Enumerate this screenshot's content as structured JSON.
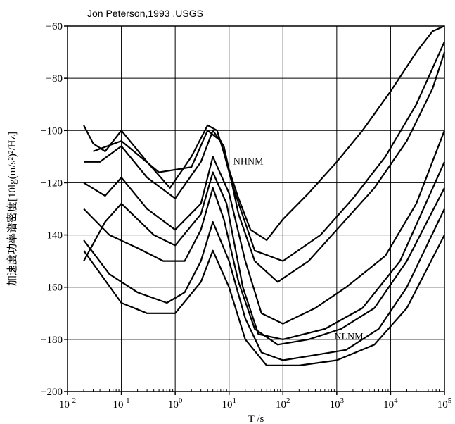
{
  "chart_data": {
    "type": "line",
    "title": "",
    "credit": "Jon Peterson,1993 ,USGS",
    "xlabel": "T /s",
    "ylabel": "加速度功率谱密度[10lg(m/s²)²/Hz]",
    "xscale": "log",
    "xlim": [
      0.01,
      100000
    ],
    "ylim": [
      -200,
      -60
    ],
    "x_tick_labels": [
      {
        "base": "10",
        "exp": "-2"
      },
      {
        "base": "10",
        "exp": "-1"
      },
      {
        "base": "10",
        "exp": "0"
      },
      {
        "base": "10",
        "exp": "1"
      },
      {
        "base": "10",
        "exp": "2"
      },
      {
        "base": "10",
        "exp": "3"
      },
      {
        "base": "10",
        "exp": "4"
      },
      {
        "base": "10",
        "exp": "5"
      }
    ],
    "x_ticks": [
      0.01,
      0.1,
      1,
      10,
      100,
      1000,
      10000,
      100000
    ],
    "y_ticks": [
      -60,
      -80,
      -100,
      -120,
      -140,
      -160,
      -180,
      -200
    ],
    "y_tick_labels": [
      "−60",
      "−80",
      "−100",
      "−120",
      "−140",
      "−160",
      "−180",
      "−200"
    ],
    "grid": true,
    "annotations": [
      {
        "text": "NHNM",
        "x": 12,
        "y": -113
      },
      {
        "text": "NLNM",
        "x": 900,
        "y": -180
      }
    ],
    "series": [
      {
        "points": [
          [
            0.02,
            -98
          ],
          [
            0.03,
            -105
          ],
          [
            0.05,
            -108
          ],
          [
            0.1,
            -100
          ],
          [
            0.3,
            -112
          ],
          [
            0.8,
            -122
          ],
          [
            2,
            -110
          ],
          [
            4,
            -98
          ],
          [
            6,
            -100
          ],
          [
            10,
            -115
          ],
          [
            15,
            -126
          ],
          [
            25,
            -138
          ],
          [
            50,
            -142
          ],
          [
            100,
            -134
          ],
          [
            300,
            -124
          ],
          [
            1000,
            -112
          ],
          [
            3000,
            -100
          ],
          [
            10000,
            -85
          ],
          [
            30000,
            -70
          ],
          [
            60000,
            -62
          ],
          [
            100000,
            -60
          ]
        ]
      },
      {
        "points": [
          [
            0.02,
            -112
          ],
          [
            0.04,
            -112
          ],
          [
            0.1,
            -106
          ],
          [
            0.3,
            -118
          ],
          [
            1,
            -126
          ],
          [
            3,
            -112
          ],
          [
            5,
            -100
          ],
          [
            8,
            -106
          ],
          [
            15,
            -132
          ],
          [
            30,
            -150
          ],
          [
            80,
            -158
          ],
          [
            300,
            -150
          ],
          [
            1000,
            -138
          ],
          [
            5000,
            -122
          ],
          [
            20000,
            -104
          ],
          [
            60000,
            -84
          ],
          [
            100000,
            -70
          ]
        ]
      },
      {
        "points": [
          [
            0.02,
            -120
          ],
          [
            0.05,
            -125
          ],
          [
            0.1,
            -118
          ],
          [
            0.3,
            -130
          ],
          [
            1,
            -138
          ],
          [
            3,
            -128
          ],
          [
            5,
            -110
          ],
          [
            10,
            -124
          ],
          [
            20,
            -150
          ],
          [
            40,
            -170
          ],
          [
            100,
            -174
          ],
          [
            400,
            -168
          ],
          [
            1500,
            -160
          ],
          [
            8000,
            -148
          ],
          [
            30000,
            -128
          ],
          [
            100000,
            -100
          ]
        ]
      },
      {
        "points": [
          [
            0.02,
            -130
          ],
          [
            0.06,
            -140
          ],
          [
            0.2,
            -145
          ],
          [
            0.6,
            -150
          ],
          [
            1.5,
            -150
          ],
          [
            3,
            -138
          ],
          [
            5,
            -122
          ],
          [
            8,
            -134
          ],
          [
            15,
            -158
          ],
          [
            30,
            -176
          ],
          [
            80,
            -182
          ],
          [
            300,
            -180
          ],
          [
            1200,
            -176
          ],
          [
            5000,
            -168
          ],
          [
            20000,
            -150
          ],
          [
            100000,
            -122
          ]
        ]
      },
      {
        "points": [
          [
            0.02,
            -142
          ],
          [
            0.06,
            -155
          ],
          [
            0.2,
            -162
          ],
          [
            0.7,
            -166
          ],
          [
            1.5,
            -162
          ],
          [
            3,
            -150
          ],
          [
            5,
            -135
          ],
          [
            10,
            -150
          ],
          [
            20,
            -172
          ],
          [
            40,
            -185
          ],
          [
            100,
            -188
          ],
          [
            400,
            -186
          ],
          [
            1500,
            -184
          ],
          [
            6000,
            -176
          ],
          [
            20000,
            -160
          ],
          [
            100000,
            -130
          ]
        ]
      },
      {
        "points": [
          [
            0.02,
            -146
          ],
          [
            0.1,
            -166
          ],
          [
            0.3,
            -170
          ],
          [
            1,
            -170
          ],
          [
            3,
            -158
          ],
          [
            5,
            -146
          ],
          [
            10,
            -160
          ],
          [
            20,
            -180
          ],
          [
            50,
            -190
          ],
          [
            200,
            -190
          ],
          [
            1000,
            -188
          ],
          [
            5000,
            -182
          ],
          [
            20000,
            -168
          ],
          [
            100000,
            -140
          ]
        ]
      },
      {
        "points": [
          [
            0.03,
            -108
          ],
          [
            0.1,
            -104
          ],
          [
            0.5,
            -116
          ],
          [
            2,
            -114
          ],
          [
            4,
            -100
          ],
          [
            7,
            -104
          ],
          [
            12,
            -122
          ],
          [
            30,
            -146
          ],
          [
            100,
            -150
          ],
          [
            500,
            -140
          ],
          [
            2000,
            -126
          ],
          [
            8000,
            -110
          ],
          [
            30000,
            -90
          ],
          [
            100000,
            -66
          ]
        ]
      },
      {
        "points": [
          [
            0.02,
            -150
          ],
          [
            0.05,
            -135
          ],
          [
            0.1,
            -128
          ],
          [
            0.4,
            -140
          ],
          [
            1,
            -144
          ],
          [
            3,
            -132
          ],
          [
            5,
            -116
          ],
          [
            9,
            -128
          ],
          [
            18,
            -160
          ],
          [
            35,
            -178
          ],
          [
            100,
            -180
          ],
          [
            600,
            -176
          ],
          [
            3000,
            -168
          ],
          [
            15000,
            -150
          ],
          [
            100000,
            -112
          ]
        ]
      }
    ]
  }
}
